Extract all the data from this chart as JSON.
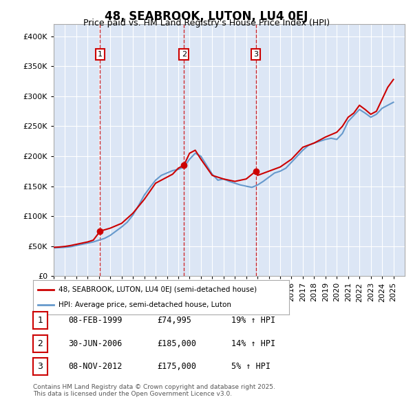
{
  "title": "48, SEABROOK, LUTON, LU4 0EJ",
  "subtitle": "Price paid vs. HM Land Registry's House Price Index (HPI)",
  "background_color": "#dce6f5",
  "plot_bg_color": "#dce6f5",
  "red_line_color": "#cc0000",
  "blue_line_color": "#6699cc",
  "ylim": [
    0,
    420000
  ],
  "yticks": [
    0,
    50000,
    100000,
    150000,
    200000,
    250000,
    300000,
    350000,
    400000
  ],
  "xlim_start": 1995,
  "xlim_end": 2026,
  "sale_dates": [
    1999.1,
    2006.5,
    2012.85
  ],
  "sale_prices": [
    74995,
    185000,
    175000
  ],
  "sale_labels": [
    "1",
    "2",
    "3"
  ],
  "legend_label_red": "48, SEABROOK, LUTON, LU4 0EJ (semi-detached house)",
  "legend_label_blue": "HPI: Average price, semi-detached house, Luton",
  "table_rows": [
    [
      "1",
      "08-FEB-1999",
      "£74,995",
      "19% ↑ HPI"
    ],
    [
      "2",
      "30-JUN-2006",
      "£185,000",
      "14% ↑ HPI"
    ],
    [
      "3",
      "08-NOV-2012",
      "£175,000",
      "5% ↑ HPI"
    ]
  ],
  "footnote": "Contains HM Land Registry data © Crown copyright and database right 2025.\nThis data is licensed under the Open Government Licence v3.0.",
  "hpi_years": [
    1995,
    1995.5,
    1996,
    1996.5,
    1997,
    1997.5,
    1998,
    1998.5,
    1999,
    1999.5,
    2000,
    2000.5,
    2001,
    2001.5,
    2002,
    2002.5,
    2003,
    2003.5,
    2004,
    2004.5,
    2005,
    2005.5,
    2006,
    2006.5,
    2007,
    2007.5,
    2008,
    2008.5,
    2009,
    2009.5,
    2010,
    2010.5,
    2011,
    2011.5,
    2012,
    2012.5,
    2013,
    2013.5,
    2014,
    2014.5,
    2015,
    2015.5,
    2016,
    2016.5,
    2017,
    2017.5,
    2018,
    2018.5,
    2019,
    2019.5,
    2020,
    2020.5,
    2021,
    2021.5,
    2022,
    2022.5,
    2023,
    2023.5,
    2024,
    2024.5,
    2025
  ],
  "hpi_values": [
    47000,
    47500,
    48000,
    49000,
    51000,
    53000,
    55000,
    57000,
    60000,
    63000,
    68000,
    75000,
    82000,
    90000,
    102000,
    118000,
    135000,
    148000,
    160000,
    168000,
    172000,
    176000,
    178000,
    182000,
    195000,
    205000,
    200000,
    185000,
    170000,
    160000,
    162000,
    158000,
    155000,
    152000,
    150000,
    148000,
    152000,
    158000,
    165000,
    172000,
    175000,
    180000,
    190000,
    200000,
    210000,
    218000,
    222000,
    225000,
    228000,
    230000,
    228000,
    238000,
    258000,
    268000,
    278000,
    272000,
    265000,
    270000,
    280000,
    285000,
    290000
  ],
  "red_years": [
    1995,
    1995.5,
    1996,
    1996.5,
    1997,
    1997.5,
    1998,
    1998.5,
    1999.1,
    2000,
    2001,
    2002,
    2003,
    2004,
    2005,
    2005.5,
    2006,
    2006.5,
    2007,
    2007.5,
    2008,
    2009,
    2010,
    2011,
    2012,
    2012.85,
    2013,
    2014,
    2015,
    2016,
    2017,
    2018,
    2019,
    2020,
    2020.5,
    2021,
    2021.5,
    2022,
    2022.5,
    2023,
    2023.5,
    2024,
    2024.5,
    2025
  ],
  "red_values": [
    48000,
    48500,
    49500,
    51000,
    53000,
    55000,
    57000,
    60000,
    74995,
    80000,
    88000,
    105000,
    128000,
    155000,
    165000,
    170000,
    180000,
    185000,
    205000,
    210000,
    195000,
    168000,
    162000,
    158000,
    162000,
    175000,
    168000,
    175000,
    182000,
    195000,
    215000,
    222000,
    232000,
    240000,
    250000,
    265000,
    272000,
    285000,
    278000,
    270000,
    275000,
    295000,
    315000,
    328000
  ]
}
